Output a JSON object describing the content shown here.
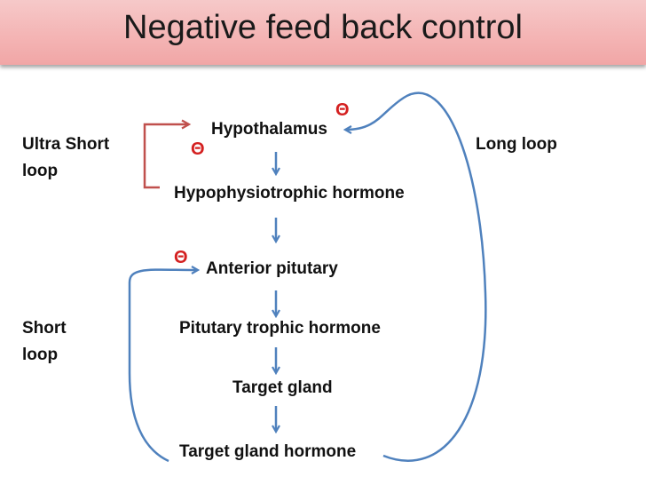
{
  "title": "Negative feed back control",
  "nodes": {
    "hypothalamus": "Hypothalamus",
    "hypophysiotrophic_hormone": "Hypophysiotrophic hormone",
    "anterior_pituitary": "Anterior pitutary",
    "pituitary_trophic_hormone": "Pitutary trophic hormone",
    "target_gland": "Target gland",
    "target_gland_hormone": "Target gland hormone"
  },
  "loops": {
    "ultra_short": "Ultra Short loop",
    "short": "Short loop",
    "long": "Long loop"
  },
  "inhibition_symbol": "Θ",
  "colors": {
    "title_bg": "#f4b5b5",
    "arrow_blue": "#4f81bd",
    "ultra_short_red": "#c0504d",
    "inhibition_red": "#d42020"
  }
}
